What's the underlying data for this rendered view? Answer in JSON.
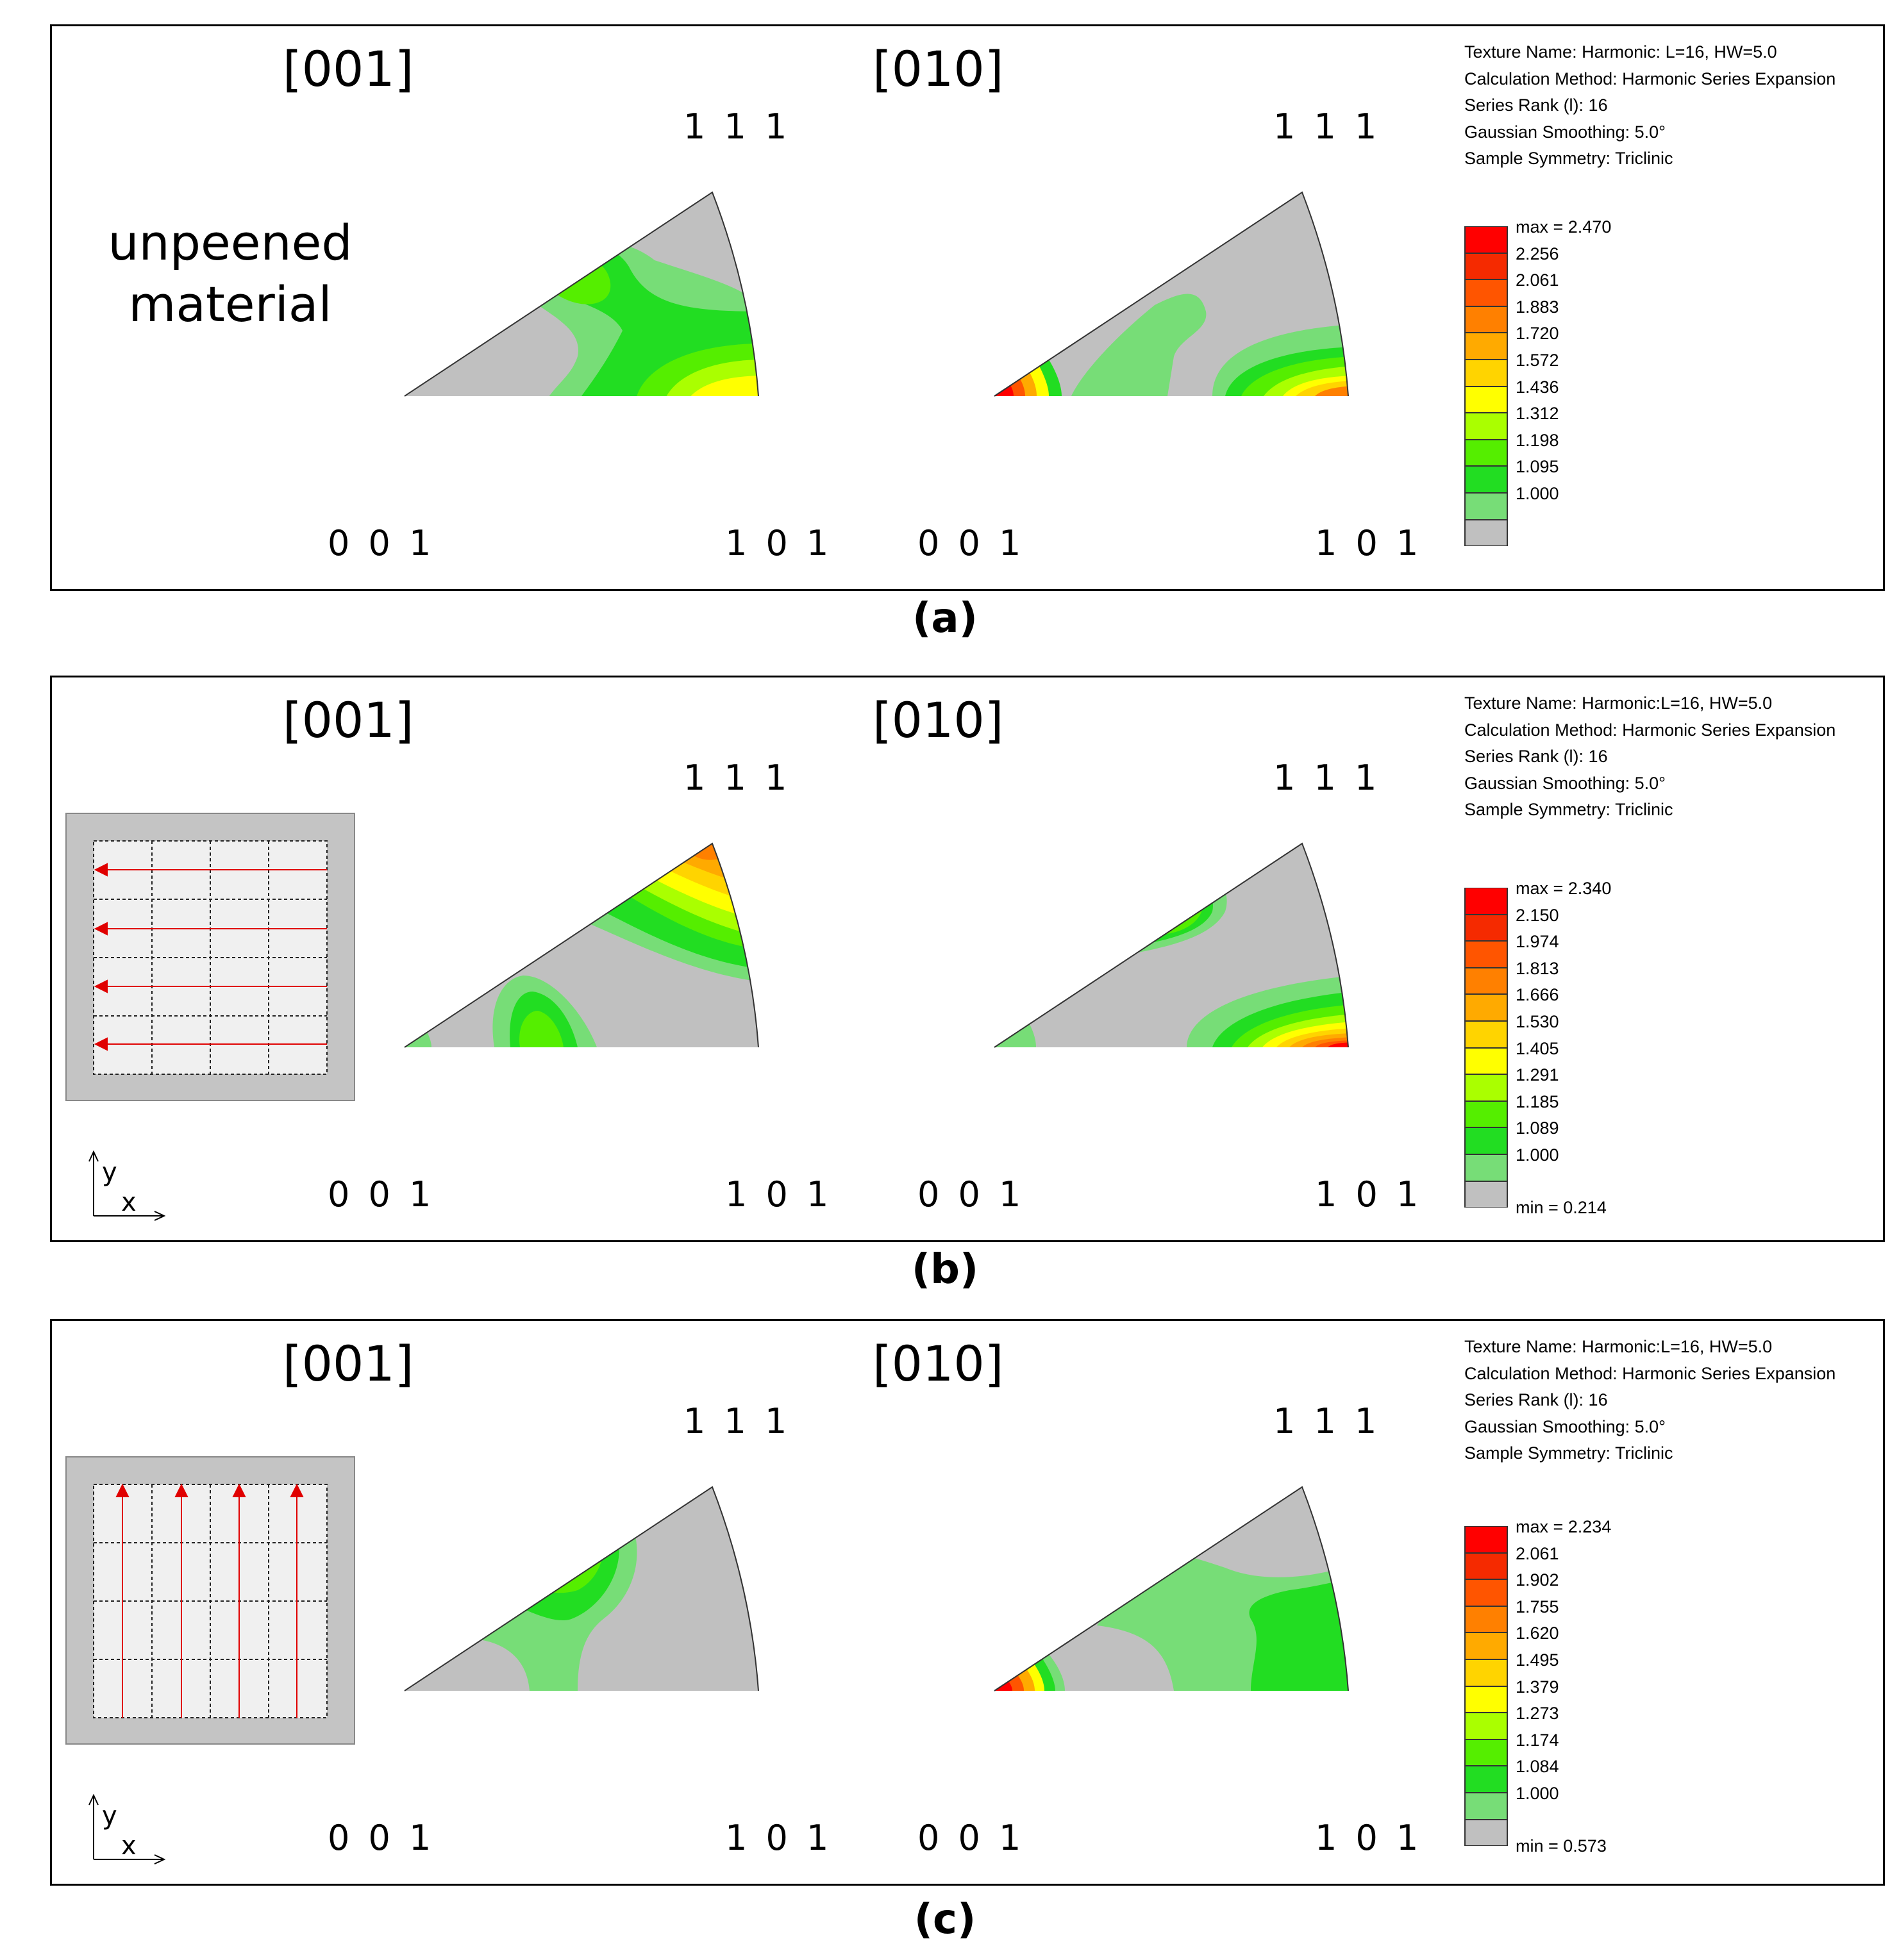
{
  "panels": [
    {
      "caption": "(a)",
      "title_left": "[001]",
      "title_right": "[010]",
      "side_label": [
        "unpeened",
        "material"
      ],
      "inset": null,
      "corners": {
        "c111": "1 1 1",
        "c001": "0 0 1",
        "c101": "1 0 1"
      },
      "info": [
        "Texture Name: Harmonic: L=16, HW=5.0",
        "Calculation Method: Harmonic Series Expansion",
        "Series Rank (l): 16",
        "Gaussian Smoothing: 5.0°",
        "Sample Symmetry: Triclinic"
      ],
      "legend": {
        "labels": [
          "max = 2.470",
          "2.256",
          "2.061",
          "1.883",
          "1.720",
          "1.572",
          "1.436",
          "1.312",
          "1.198",
          "1.095",
          "1.000"
        ],
        "min": null
      }
    },
    {
      "caption": "(b)",
      "title_left": "[001]",
      "title_right": "[010]",
      "side_label": null,
      "inset": {
        "direction": "horizontal",
        "axis_y": "y",
        "axis_x": "x"
      },
      "corners": {
        "c111": "1 1 1",
        "c001": "0 0 1",
        "c101": "1 0 1"
      },
      "info": [
        "Texture Name: Harmonic:L=16, HW=5.0",
        "Calculation Method: Harmonic Series Expansion",
        "Series Rank (l): 16",
        "Gaussian Smoothing: 5.0°",
        "Sample Symmetry: Triclinic"
      ],
      "legend": {
        "labels": [
          "max = 2.340",
          "2.150",
          "1.974",
          "1.813",
          "1.666",
          "1.530",
          "1.405",
          "1.291",
          "1.185",
          "1.089",
          "1.000"
        ],
        "min": "min = 0.214"
      }
    },
    {
      "caption": "(c)",
      "title_left": "[001]",
      "title_right": "[010]",
      "side_label": null,
      "inset": {
        "direction": "vertical",
        "axis_y": "y",
        "axis_x": "x"
      },
      "corners": {
        "c111": "1 1 1",
        "c001": "0 0 1",
        "c101": "1 0 1"
      },
      "info": [
        "Texture Name: Harmonic:L=16, HW=5.0",
        "Calculation Method: Harmonic Series Expansion",
        "Series Rank (l): 16",
        "Gaussian Smoothing: 5.0°",
        "Sample Symmetry: Triclinic"
      ],
      "legend": {
        "labels": [
          "max = 2.234",
          "2.061",
          "1.902",
          "1.755",
          "1.620",
          "1.495",
          "1.379",
          "1.273",
          "1.174",
          "1.084",
          "1.000"
        ],
        "min": "min = 0.573"
      }
    }
  ],
  "colors": {
    "levels": [
      "#ff0000",
      "#f52a00",
      "#ff5500",
      "#ff8000",
      "#ffaa00",
      "#ffd400",
      "#ffff00",
      "#aaff00",
      "#55ee00",
      "#22dd22",
      "#77dd77"
    ],
    "base": "#c0c0c0",
    "arrow": "#e00000"
  }
}
